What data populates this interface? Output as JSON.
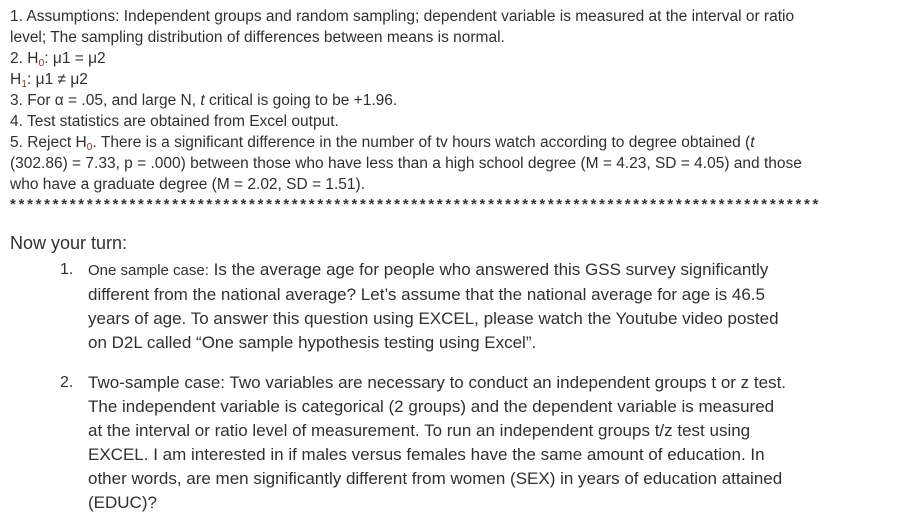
{
  "colors": {
    "background": "#ffffff",
    "text": "#303030",
    "subscript_red": "#8a3b3b"
  },
  "steps": {
    "line1": "1. Assumptions: Independent groups and random sampling; dependent variable is measured at the interval or ratio",
    "line2": "level; The sampling distribution of differences between means is normal.",
    "h0_pre": "2. H",
    "h0_sub": "0",
    "h0_post": ": μ1 = μ2",
    "h1_pre": "H",
    "h1_sub": "1",
    "h1_post": ": μ1 ≠ μ2",
    "line5_pre": "3. For α = .05, and large N, ",
    "line5_t": "t",
    "line5_post": " critical is going to be +1.96.",
    "line6": "4. Test statistics are obtained from Excel output.",
    "line7_pre": "5. Reject H",
    "line7_sub": "0",
    "line7_mid": ". There is a significant difference in the number of tv hours watch according to degree obtained (",
    "line7_t": "t",
    "line8": "(302.86) = 7.33, p = .000) between those who have less than a high school degree (M = 4.23, SD = 4.05) and those",
    "line9": "who have a graduate degree (M = 2.02, SD = 1.51).",
    "separator": "***********************************************************************************************"
  },
  "your_turn": {
    "heading": "Now your turn:",
    "items": [
      {
        "number": "1.",
        "lead": "One sample case:",
        "lines": [
          " Is the average age for people who answered this GSS survey significantly",
          "different from the national average? Let’s assume that the national average for age is 46.5",
          "years of age. To answer this question using EXCEL, please watch the Youtube video posted",
          "on D2L called “One sample hypothesis testing using Excel”."
        ]
      },
      {
        "number": "2.",
        "lines": [
          "Two-sample case: Two variables are necessary to conduct an independent groups t or z test.",
          "The independent variable is categorical (2 groups) and the dependent variable is measured",
          "at the interval or ratio level of measurement. To run an independent groups t/z test using",
          "EXCEL. I am interested in if males versus females have the same amount of education. In",
          "other words, are men significantly different from women (SEX) in years of education attained",
          "(EDUC)?"
        ]
      }
    ]
  }
}
